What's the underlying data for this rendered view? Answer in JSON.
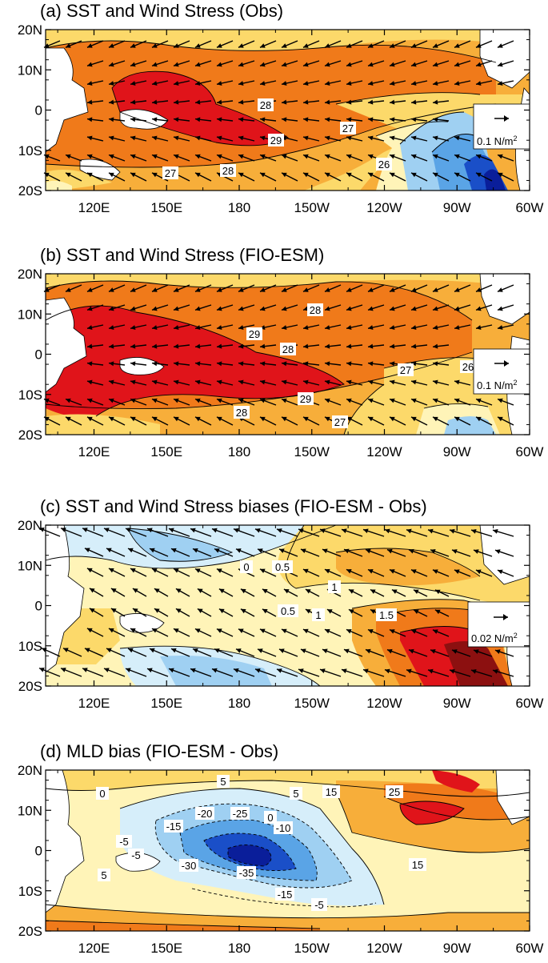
{
  "figure": {
    "panels": [
      {
        "id": "a",
        "title": "(a) SST and Wind Stress (Obs)",
        "contour_labels": [
          "28",
          "29",
          "27",
          "28",
          "27",
          "26"
        ],
        "ref_vector_label": "0.1 N/m",
        "ref_vector_superscript": "2"
      },
      {
        "id": "b",
        "title": "(b) SST and Wind Stress (FIO-ESM)",
        "contour_labels": [
          "28",
          "29",
          "28",
          "27",
          "26",
          "29",
          "28",
          "27"
        ],
        "ref_vector_label": "0.1 N/m",
        "ref_vector_superscript": "2"
      },
      {
        "id": "c",
        "title": "(c) SST and Wind Stress biases (FIO-ESM - Obs)",
        "contour_labels": [
          "0",
          "0.5",
          "1",
          "0.5",
          "1",
          "1.5"
        ],
        "ref_vector_label": "0.02 N/m",
        "ref_vector_superscript": "2"
      },
      {
        "id": "d",
        "title": "(d) MLD bias (FIO-ESM - Obs)",
        "contour_labels": [
          "5",
          "0",
          "15",
          "25",
          "5",
          "-15",
          "-20",
          "-25",
          "0",
          "-10",
          "-5",
          "-30",
          "-35",
          "15",
          "-15",
          "-5",
          "5",
          "-5"
        ],
        "ref_vector_label": "",
        "ref_vector_superscript": ""
      }
    ],
    "lat_ticks": [
      "20N",
      "10N",
      "0",
      "10S",
      "20S"
    ],
    "lon_ticks": [
      "120E",
      "150E",
      "180",
      "150W",
      "120W",
      "90W",
      "60W"
    ],
    "colors": {
      "sst_deep_red": "#e0141a",
      "sst_orange": "#f07a1a",
      "sst_light_orange": "#f7ae3a",
      "sst_yellow": "#fcd96a",
      "sst_pale_yellow": "#fff4b8",
      "cool_pale": "#d6eefa",
      "cool_light": "#9fd0f2",
      "cool_mid": "#5aa4e6",
      "cool_dark": "#1a4fc8",
      "navy": "#0a1e9a",
      "dark_red": "#8c1010",
      "land": "#ffffff"
    }
  }
}
